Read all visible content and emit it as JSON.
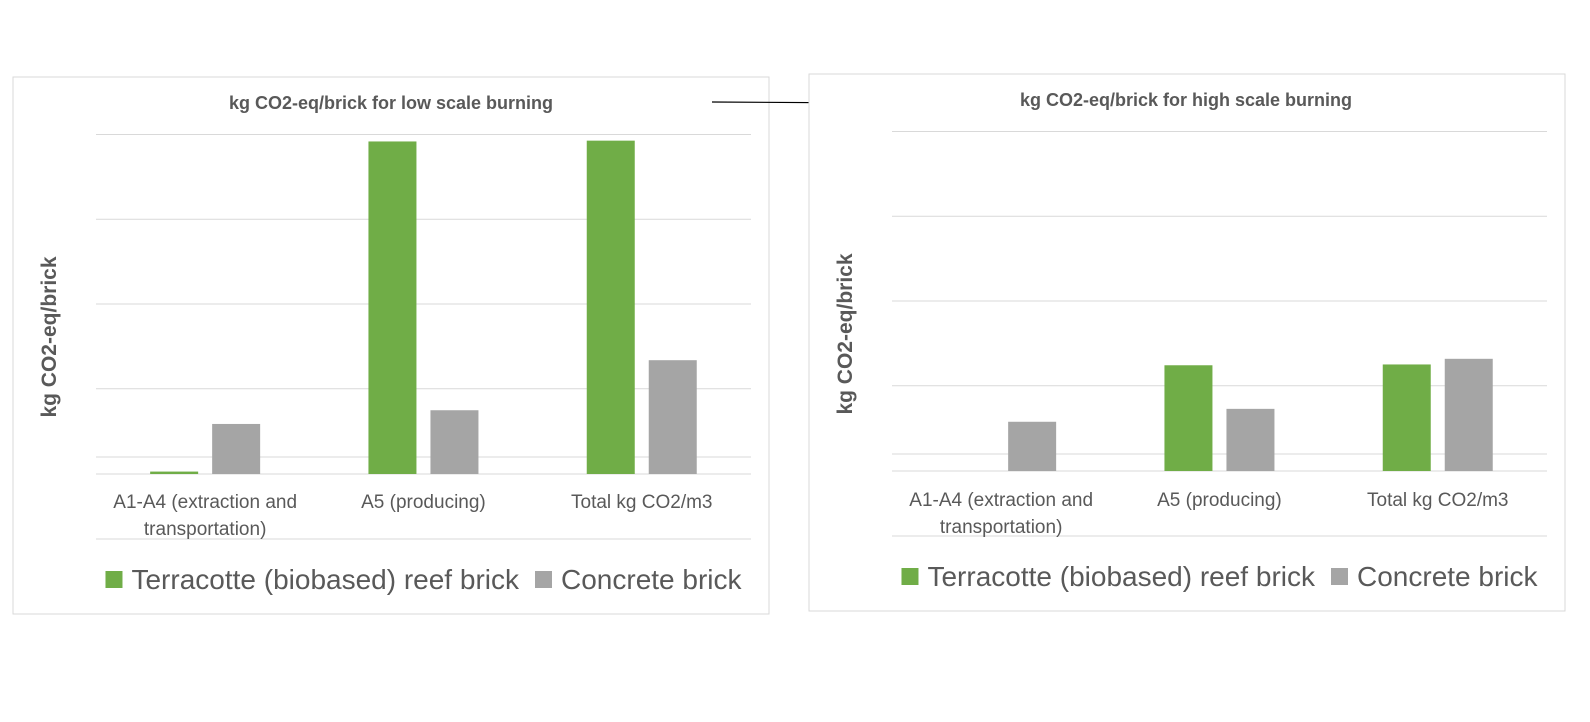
{
  "chart_data": [
    {
      "type": "bar",
      "title": "kg CO2-eq/brick for low scale burning",
      "ylabel": "kg CO2-eq/brick",
      "xlabel": "",
      "categories": [
        "A1-A4 (extraction and transportation)",
        "A5 (producing)",
        "Total kg CO2/m3"
      ],
      "category_lines": [
        [
          "A1-A4 (extraction and",
          "transportation)"
        ],
        [
          "A5 (producing)"
        ],
        [
          "Total kg CO2/m3"
        ]
      ],
      "series": [
        {
          "name": "Terracotte (biobased) reef brick",
          "color": "#70ad47",
          "values": [
            0.03,
            4.12,
            4.13
          ]
        },
        {
          "name": "Concrete brick",
          "color": "#a5a5a5",
          "values": [
            0.62,
            0.79,
            1.41
          ]
        }
      ],
      "ylim": [
        0,
        4.2
      ],
      "grid": true,
      "legend": "bottom"
    },
    {
      "type": "bar",
      "title": "kg CO2-eq/brick for high scale burning",
      "ylabel": "kg CO2-eq/brick",
      "xlabel": "",
      "categories": [
        "A1-A4 (extraction and transportation)",
        "A5 (producing)",
        "Total kg CO2/m3"
      ],
      "category_lines": [
        [
          "A1-A4 (extraction and",
          "transportation)"
        ],
        [
          "A5 (producing)"
        ],
        [
          "Total kg CO2/m3"
        ]
      ],
      "series": [
        {
          "name": "Terracotte (biobased) reef brick",
          "color": "#70ad47",
          "values": [
            0,
            1.31,
            1.32
          ]
        },
        {
          "name": "Concrete brick",
          "color": "#a5a5a5",
          "values": [
            0.61,
            0.77,
            1.39
          ]
        }
      ],
      "ylim": [
        0,
        4.2
      ],
      "grid": true,
      "legend": "bottom"
    }
  ]
}
